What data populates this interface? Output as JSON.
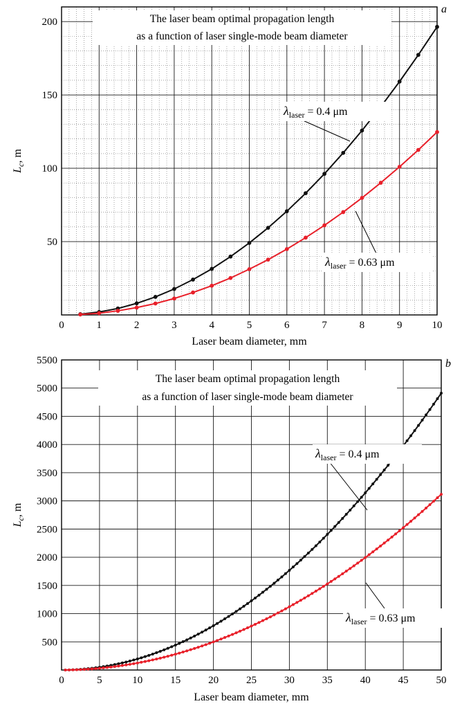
{
  "chart_data": [
    {
      "type": "line",
      "panel_label": "a",
      "title_lines": [
        "The laser beam optimal propagation length",
        "as a function of laser single-mode beam diameter"
      ],
      "xlabel": "Laser beam diameter, mm",
      "ylabel_main": "L",
      "ylabel_sub": "c",
      "ylabel_unit": ", m",
      "xlim": [
        0,
        10
      ],
      "ylim": [
        0,
        210
      ],
      "x_ticks": [
        0,
        1,
        2,
        3,
        4,
        5,
        6,
        7,
        8,
        9,
        10
      ],
      "y_ticks": [
        50,
        100,
        150,
        200
      ],
      "grid": true,
      "series": [
        {
          "annotation": {
            "main": "λ",
            "sub": "laser",
            "rest": " = 0.4 μm"
          },
          "color": "#111111",
          "x": [
            0.5,
            1,
            1.5,
            2,
            2.5,
            3,
            3.5,
            4,
            4.5,
            5,
            5.5,
            6,
            6.5,
            7,
            7.5,
            8,
            8.5,
            9,
            9.5,
            10
          ],
          "y": [
            0.5,
            2.0,
            4.4,
            7.9,
            12.3,
            17.7,
            24.1,
            31.4,
            39.8,
            49.1,
            59.4,
            70.7,
            83.0,
            96.2,
            110.5,
            125.7,
            141.9,
            159.1,
            177.3,
            196.4
          ]
        },
        {
          "annotation": {
            "main": "λ",
            "sub": "laser",
            "rest": " = 0.63 μm"
          },
          "color": "#e8202a",
          "x": [
            0.5,
            1,
            1.5,
            2,
            2.5,
            3,
            3.5,
            4,
            4.5,
            5,
            5.5,
            6,
            6.5,
            7,
            7.5,
            8,
            8.5,
            9,
            9.5,
            10
          ],
          "y": [
            0.3,
            1.2,
            2.8,
            5.0,
            7.8,
            11.2,
            15.3,
            19.9,
            25.2,
            31.2,
            37.7,
            44.9,
            52.7,
            61.1,
            70.1,
            79.8,
            90.1,
            101.0,
            112.5,
            124.7
          ]
        }
      ]
    },
    {
      "type": "line",
      "panel_label": "b",
      "title_lines": [
        "The laser beam optimal propagation length",
        "as a function of laser single-mode beam diameter"
      ],
      "xlabel": "Laser beam diameter, mm",
      "ylabel_main": "L",
      "ylabel_sub": "c",
      "ylabel_unit": ", m",
      "xlim": [
        0,
        50
      ],
      "ylim": [
        0,
        5500
      ],
      "x_ticks": [
        0,
        5,
        10,
        15,
        20,
        25,
        30,
        35,
        40,
        45,
        50
      ],
      "y_ticks": [
        500,
        1000,
        1500,
        2000,
        2500,
        3000,
        3500,
        4000,
        4500,
        5000,
        5500
      ],
      "grid": true,
      "series": [
        {
          "annotation": {
            "main": "λ",
            "sub": "laser",
            "rest": " = 0.4 μm"
          },
          "color": "#111111",
          "x_start": 0.5,
          "x_step": 0.5,
          "x_end": 50,
          "y_at_xmax": 4910
        },
        {
          "annotation": {
            "main": "λ",
            "sub": "laser",
            "rest": " = 0.63 μm"
          },
          "color": "#e8202a",
          "x_start": 0.5,
          "x_step": 0.5,
          "x_end": 50,
          "y_at_xmax": 3117
        }
      ]
    }
  ]
}
